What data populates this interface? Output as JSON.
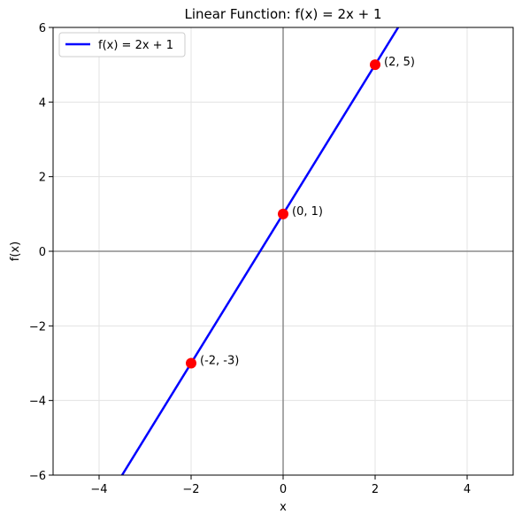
{
  "chart_data": {
    "type": "line",
    "title": "Linear Function: f(x) = 2x + 1",
    "xlabel": "x",
    "ylabel": "f(x)",
    "xlim": [
      -5,
      5
    ],
    "ylim": [
      -6,
      6
    ],
    "xticks": [
      -4,
      -2,
      0,
      2,
      4
    ],
    "yticks": [
      -6,
      -4,
      -2,
      0,
      2,
      4,
      6
    ],
    "xtick_labels": [
      "−4",
      "−2",
      "0",
      "2",
      "4"
    ],
    "ytick_labels": [
      "−6",
      "−4",
      "−2",
      "0",
      "2",
      "4",
      "6"
    ],
    "grid": true,
    "legend_position": "top-left",
    "series": [
      {
        "name": "f(x) = 2x + 1",
        "slope": 2,
        "intercept": 1,
        "x": [
          -3.5,
          2.5
        ],
        "y": [
          -6,
          6
        ],
        "color": "#0000ff"
      }
    ],
    "points": [
      {
        "x": -2,
        "y": -3,
        "label": "(-2, -3)",
        "color": "#ff0000"
      },
      {
        "x": 0,
        "y": 1,
        "label": "(0, 1)",
        "color": "#ff0000"
      },
      {
        "x": 2,
        "y": 5,
        "label": "(2, 5)",
        "color": "#ff0000"
      }
    ]
  }
}
